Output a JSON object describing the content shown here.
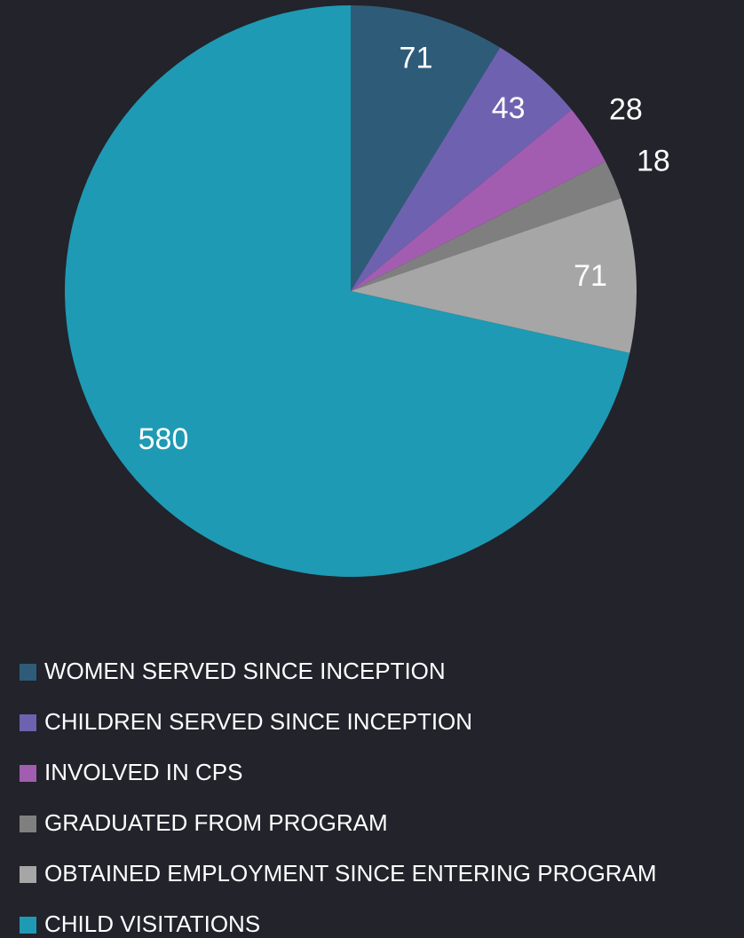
{
  "chart_data": {
    "type": "pie",
    "categories": [
      "WOMEN SERVED SINCE INCEPTION",
      "CHILDREN SERVED SINCE INCEPTION",
      "INVOLVED IN CPS",
      "GRADUATED FROM PROGRAM",
      "OBTAINED EMPLOYMENT SINCE ENTERING PROGRAM",
      "CHILD VISITATIONS"
    ],
    "values": [
      71,
      43,
      28,
      18,
      71,
      580
    ],
    "colors": [
      "#2e5c78",
      "#6e62b0",
      "#a35db0",
      "#7f7f7f",
      "#a6a6a6",
      "#1e9ab4"
    ],
    "legend": "bottom"
  }
}
